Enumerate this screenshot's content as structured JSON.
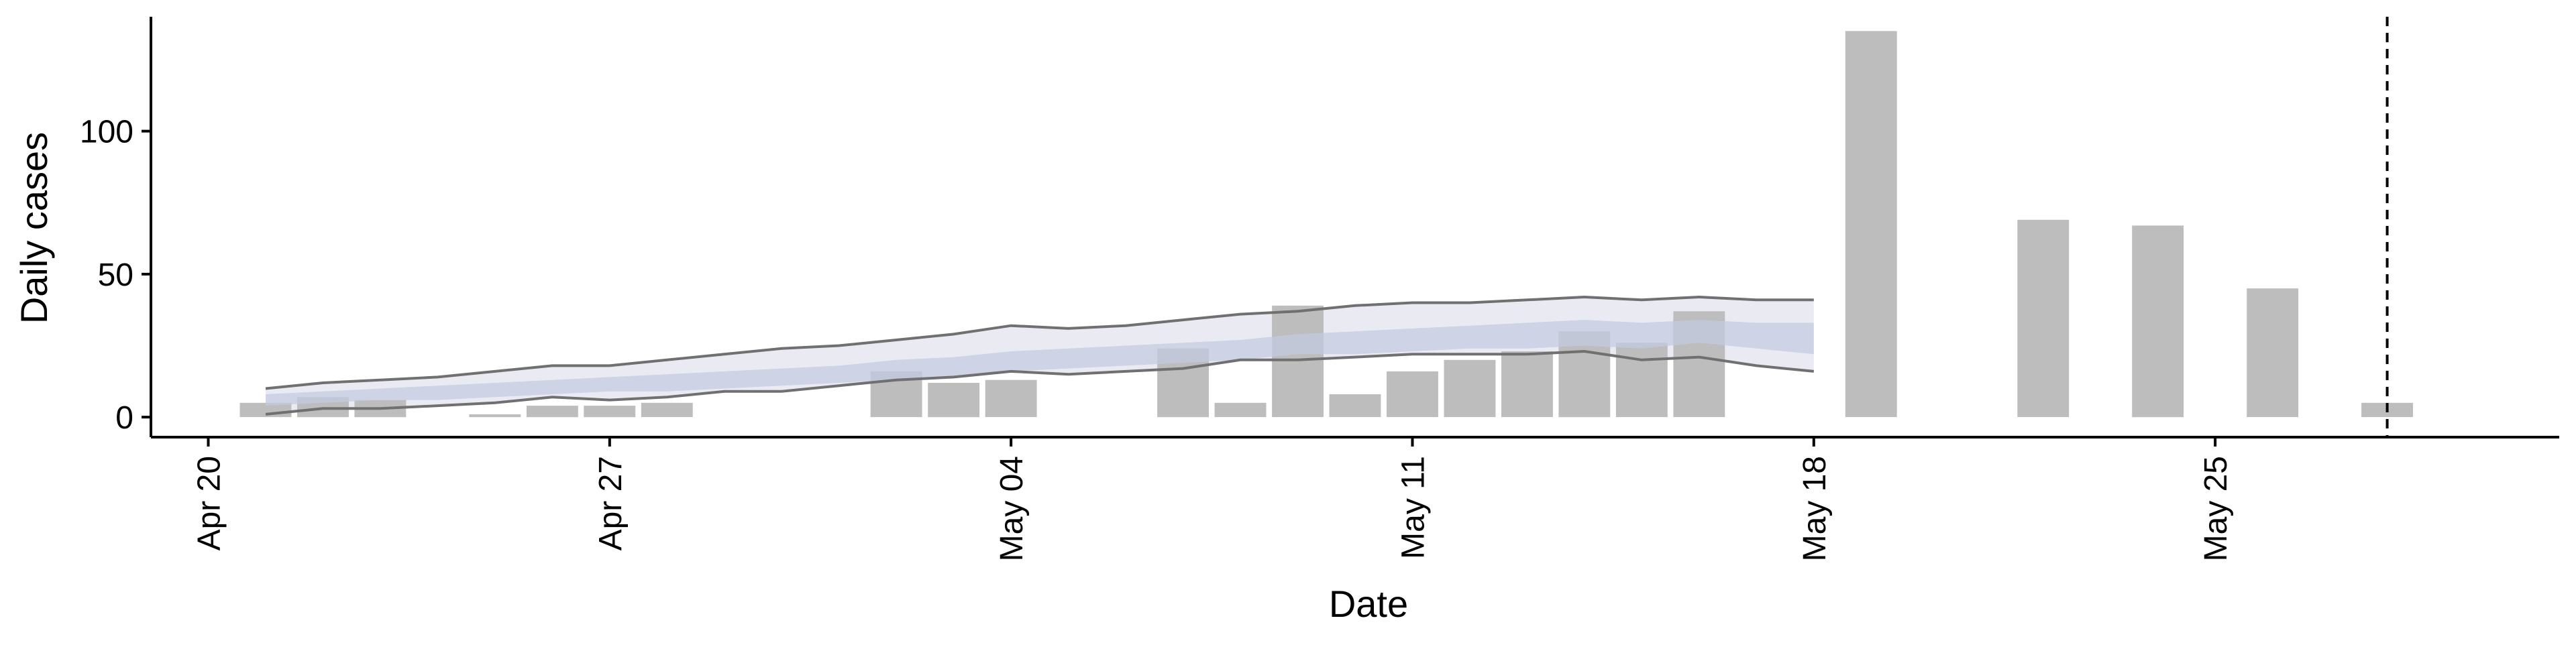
{
  "chart_data": {
    "type": "bar",
    "xlabel": "Date",
    "ylabel": "Daily cases",
    "x_range": [
      "2020-04-19",
      "2020-05-31"
    ],
    "ylim": [
      -7,
      140
    ],
    "x_ticks": [
      {
        "date": "2020-04-20",
        "label": "Apr 20"
      },
      {
        "date": "2020-04-27",
        "label": "Apr 27"
      },
      {
        "date": "2020-05-04",
        "label": "May 04"
      },
      {
        "date": "2020-05-11",
        "label": "May 11"
      },
      {
        "date": "2020-05-18",
        "label": "May 18"
      },
      {
        "date": "2020-05-25",
        "label": "May 25"
      }
    ],
    "y_ticks": [
      {
        "value": 0,
        "label": "0"
      },
      {
        "value": 50,
        "label": "50"
      },
      {
        "value": 100,
        "label": "100"
      }
    ],
    "grid": false,
    "legend": "none",
    "colors": {
      "bars": "#bdbdbd",
      "band_outer": "#e6e8f0",
      "band_inner": "#c4cbe0",
      "bound_line": "#707070",
      "vline": "#000000"
    },
    "bars": [
      {
        "date": "2020-04-21",
        "value": 5
      },
      {
        "date": "2020-04-22",
        "value": 7
      },
      {
        "date": "2020-04-23",
        "value": 6
      },
      {
        "date": "2020-04-25",
        "value": 1
      },
      {
        "date": "2020-04-26",
        "value": 4
      },
      {
        "date": "2020-04-27",
        "value": 4
      },
      {
        "date": "2020-04-28",
        "value": 5
      },
      {
        "date": "2020-05-02",
        "value": 16
      },
      {
        "date": "2020-05-03",
        "value": 12
      },
      {
        "date": "2020-05-04",
        "value": 13
      },
      {
        "date": "2020-05-07",
        "value": 24
      },
      {
        "date": "2020-05-08",
        "value": 5
      },
      {
        "date": "2020-05-09",
        "value": 39
      },
      {
        "date": "2020-05-10",
        "value": 8
      },
      {
        "date": "2020-05-11",
        "value": 16
      },
      {
        "date": "2020-05-12",
        "value": 20
      },
      {
        "date": "2020-05-13",
        "value": 23
      },
      {
        "date": "2020-05-14",
        "value": 30
      },
      {
        "date": "2020-05-15",
        "value": 26
      },
      {
        "date": "2020-05-16",
        "value": 37
      },
      {
        "date": "2020-05-19",
        "value": 135
      },
      {
        "date": "2020-05-22",
        "value": 69
      },
      {
        "date": "2020-05-24",
        "value": 67
      },
      {
        "date": "2020-05-26",
        "value": 45
      },
      {
        "date": "2020-05-28",
        "value": 5
      }
    ],
    "band": {
      "dates": [
        "2020-04-21",
        "2020-04-22",
        "2020-04-23",
        "2020-04-24",
        "2020-04-25",
        "2020-04-26",
        "2020-04-27",
        "2020-04-28",
        "2020-04-29",
        "2020-04-30",
        "2020-05-01",
        "2020-05-02",
        "2020-05-03",
        "2020-05-04",
        "2020-05-05",
        "2020-05-06",
        "2020-05-07",
        "2020-05-08",
        "2020-05-09",
        "2020-05-10",
        "2020-05-11",
        "2020-05-12",
        "2020-05-13",
        "2020-05-14",
        "2020-05-15",
        "2020-05-16",
        "2020-05-17",
        "2020-05-18"
      ],
      "upper": [
        10,
        12,
        13,
        14,
        16,
        18,
        18,
        20,
        22,
        24,
        25,
        27,
        29,
        32,
        31,
        32,
        34,
        36,
        37,
        39,
        40,
        40,
        41,
        42,
        41,
        42,
        41,
        41
      ],
      "lower": [
        1,
        3,
        3,
        4,
        5,
        7,
        6,
        7,
        9,
        9,
        11,
        13,
        14,
        16,
        15,
        16,
        17,
        20,
        20,
        21,
        22,
        22,
        22,
        23,
        20,
        21,
        18,
        16
      ],
      "inner_upper": [
        8,
        9,
        10,
        11,
        12,
        13,
        14,
        15,
        16,
        17,
        18,
        20,
        21,
        23,
        24,
        25,
        26,
        27,
        29,
        30,
        31,
        32,
        33,
        34,
        33,
        34,
        33,
        33
      ],
      "inner_lower": [
        4,
        5,
        6,
        6,
        7,
        8,
        9,
        9,
        10,
        11,
        12,
        13,
        14,
        16,
        17,
        18,
        19,
        20,
        22,
        22,
        23,
        24,
        24,
        25,
        24,
        26,
        24,
        22
      ]
    },
    "vline_date": "2020-05-28"
  }
}
